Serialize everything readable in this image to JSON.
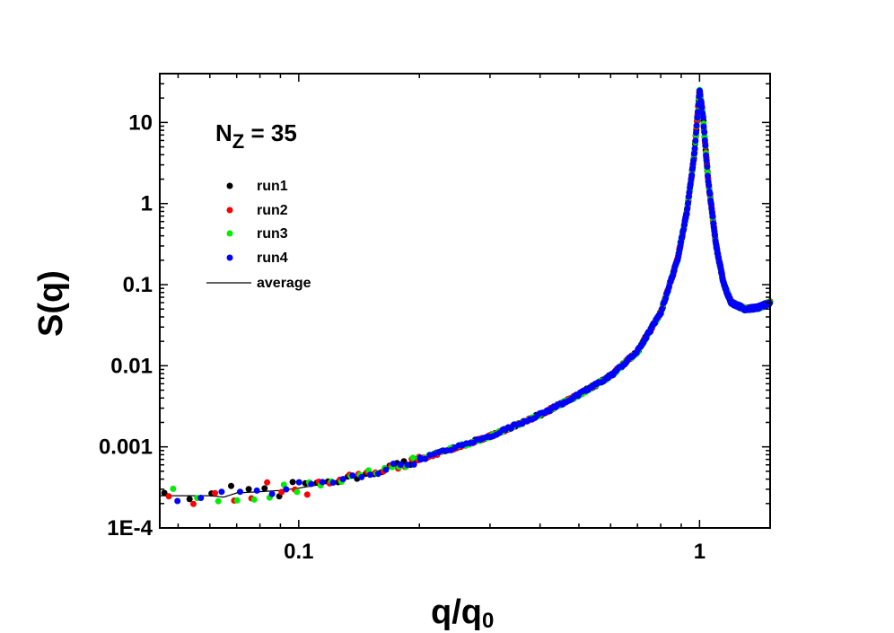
{
  "chart_data": {
    "type": "scatter",
    "title": "",
    "xlabel_main": "q/q",
    "xlabel_sub": "0",
    "ylabel": "S(q)",
    "xscale": "log",
    "yscale": "log",
    "xlim": [
      0.045,
      1.5
    ],
    "ylim": [
      0.0001,
      40
    ],
    "x_ticks": [
      {
        "value": 0.1,
        "label": "0.1"
      },
      {
        "value": 1,
        "label": "1"
      }
    ],
    "y_ticks": [
      {
        "value": 0.0001,
        "label": "1E-4"
      },
      {
        "value": 0.001,
        "label": "0.001"
      },
      {
        "value": 0.01,
        "label": "0.01"
      },
      {
        "value": 0.1,
        "label": "0.1"
      },
      {
        "value": 1,
        "label": "1"
      },
      {
        "value": 10,
        "label": "10"
      }
    ],
    "annotation": {
      "main": "N",
      "sub": "Z",
      "rest": " = 35"
    },
    "legend_position": "upper-left",
    "series": [
      {
        "name": "run1",
        "style": "points",
        "color": "#000000"
      },
      {
        "name": "run2",
        "style": "points",
        "color": "#ff0000"
      },
      {
        "name": "run3",
        "style": "points",
        "color": "#00ee00"
      },
      {
        "name": "run4",
        "style": "points",
        "color": "#0000ff"
      },
      {
        "name": "average",
        "style": "line",
        "color": "#000000"
      }
    ],
    "curve_anchors": [
      [
        0.045,
        0.00025
      ],
      [
        0.05,
        0.00025
      ],
      [
        0.06,
        0.00025
      ],
      [
        0.065,
        0.00024
      ],
      [
        0.07,
        0.00027
      ],
      [
        0.08,
        0.00028
      ],
      [
        0.09,
        0.00029
      ],
      [
        0.1,
        0.00031
      ],
      [
        0.12,
        0.00036
      ],
      [
        0.15,
        0.00047
      ],
      [
        0.2,
        0.0007
      ],
      [
        0.3,
        0.00135
      ],
      [
        0.4,
        0.0025
      ],
      [
        0.5,
        0.0044
      ],
      [
        0.6,
        0.0075
      ],
      [
        0.7,
        0.015
      ],
      [
        0.8,
        0.045
      ],
      [
        0.88,
        0.2
      ],
      [
        0.93,
        0.8
      ],
      [
        0.97,
        4
      ],
      [
        1.0,
        25
      ],
      [
        1.02,
        12
      ],
      [
        1.05,
        2
      ],
      [
        1.1,
        0.3
      ],
      [
        1.15,
        0.1
      ],
      [
        1.2,
        0.06
      ],
      [
        1.3,
        0.05
      ],
      [
        1.4,
        0.052
      ],
      [
        1.5,
        0.06
      ]
    ]
  }
}
